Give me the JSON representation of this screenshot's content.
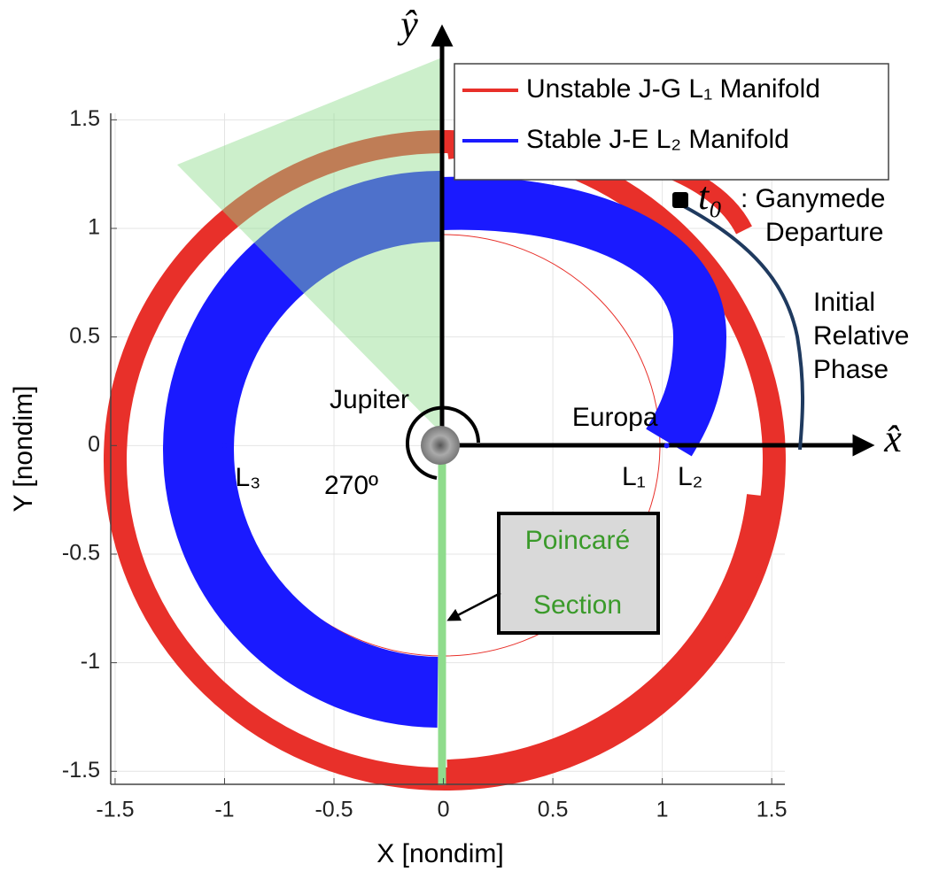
{
  "chart_data": {
    "type": "orbit",
    "xlabel": "X [nondim]",
    "ylabel": "Y [nondim]",
    "xlim": [
      -1.52,
      1.56
    ],
    "ylim": [
      -1.56,
      1.53
    ],
    "xticks": [
      -1.5,
      -1,
      -0.5,
      0,
      0.5,
      1,
      1.5
    ],
    "yticks": [
      -1.5,
      -1,
      -0.5,
      0,
      0.5,
      1,
      1.5
    ],
    "grid": true,
    "series": [
      {
        "name": "Unstable J-G L₁ Manifold",
        "color": "#e8302a"
      },
      {
        "name": "Stable J-E L₂ Manifold",
        "color": "#1a1aff"
      }
    ],
    "points": [
      {
        "label": "L₃",
        "x": -1,
        "y": 0
      },
      {
        "label": "Europa",
        "x": 1.02,
        "y": 0
      }
    ],
    "annotations": {
      "y_axis": "ŷ",
      "x_axis": "x̂",
      "t0": "t₀",
      "departure_1": ": Ganymede",
      "departure_2": "Departure",
      "phase_1": "Initial",
      "phase_2": "Relative",
      "phase_3": "Phase",
      "jupiter": "Jupiter",
      "l1": "L₁",
      "l2": "L₂",
      "angle": "270º",
      "section_1": "Poincaré",
      "section_2": "Section"
    }
  }
}
